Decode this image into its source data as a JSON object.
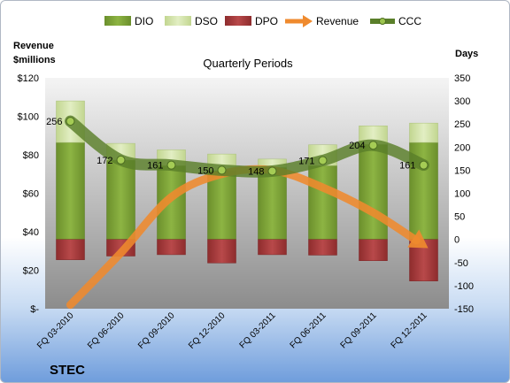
{
  "chart_data": {
    "type": "bar",
    "title": "Quarterly Periods",
    "company": "STEC",
    "left_axis_label_line1": "Revenue",
    "left_axis_label_line2": "$millions",
    "right_axis_label": "Days",
    "categories": [
      "FQ 03-2010",
      "FQ 06-2010",
      "FQ 09-2010",
      "FQ 12-2010",
      "FQ 03-2011",
      "FQ 06-2011",
      "FQ 09-2011",
      "FQ 12-2011"
    ],
    "left_ticks": [
      "$-",
      "$20",
      "$40",
      "$60",
      "$80",
      "$100",
      "$120"
    ],
    "right_ticks": [
      "-150",
      "-100",
      "-50",
      "0",
      "50",
      "100",
      "150",
      "200",
      "250",
      "300",
      "350"
    ],
    "ylim_left": [
      0,
      120
    ],
    "ylim_right": [
      -150,
      350
    ],
    "legend": {
      "position": "top",
      "items": [
        {
          "name": "DIO",
          "marker": "bar"
        },
        {
          "name": "DSO",
          "marker": "bar"
        },
        {
          "name": "DPO",
          "marker": "bar"
        },
        {
          "name": "Revenue",
          "marker": "arrow"
        },
        {
          "name": "CCC",
          "marker": "line-dot"
        }
      ]
    },
    "series": [
      {
        "name": "DIO",
        "axis": "right",
        "values": [
          210,
          172,
          160,
          149,
          156,
          160,
          206,
          210
        ]
      },
      {
        "name": "DSO",
        "axis": "right",
        "values": [
          90,
          36,
          34,
          36,
          18,
          45,
          40,
          42
        ]
      },
      {
        "name": "DPO",
        "axis": "right",
        "values": [
          -44,
          -36,
          -33,
          -51,
          -33,
          -34,
          -46,
          -90
        ]
      },
      {
        "name": "Revenue",
        "axis": "left",
        "values": [
          2,
          29,
          58,
          70,
          72,
          63,
          50,
          33
        ]
      },
      {
        "name": "CCC",
        "axis": "right",
        "values": [
          256,
          172,
          161,
          150,
          148,
          171,
          204,
          161
        ]
      }
    ],
    "ccc_labels": [
      "256",
      "172",
      "161",
      "150",
      "148",
      "171",
      "204",
      "161"
    ],
    "colors": {
      "dio": "#7fa43a",
      "dso": "#d2e4a6",
      "dpo": "#a8393a",
      "revenue": "#ef8a2e",
      "ccc": "#5a7f2a",
      "plot_top": "#f4f4f4",
      "plot_bottom": "#8c8c8c"
    }
  }
}
